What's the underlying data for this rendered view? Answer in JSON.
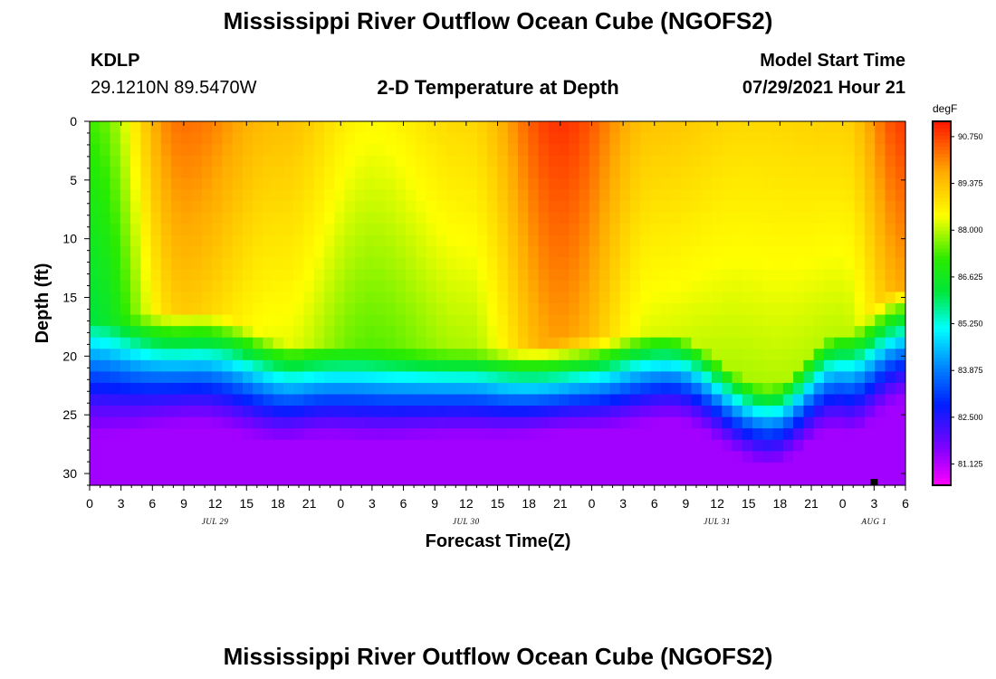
{
  "page": {
    "title_top": "Mississippi River Outflow Ocean Cube (NGOFS2)",
    "title_bottom": "Mississippi River Outflow Ocean Cube (NGOFS2)",
    "station_id": "KDLP",
    "station_coords": "29.1210N  89.5470W",
    "model_start_label": "Model Start Time",
    "model_start_value": "07/29/2021 Hour 21"
  },
  "chart_data": {
    "type": "heatmap",
    "title": "2-D Temperature at Depth",
    "xlabel": "Forecast Time(Z)",
    "ylabel": "Depth (ft)",
    "units": "degF",
    "x_ticks": [
      "0",
      "3",
      "6",
      "9",
      "12",
      "15",
      "18",
      "21",
      "0",
      "3",
      "6",
      "9",
      "12",
      "15",
      "18",
      "21",
      "0",
      "3",
      "6",
      "9",
      "12",
      "15",
      "18",
      "21",
      "0",
      "3",
      "6"
    ],
    "x_range_hours": [
      0,
      78
    ],
    "date_labels": [
      {
        "label": "JUL 29",
        "hour": 12
      },
      {
        "label": "JUL 30",
        "hour": 36
      },
      {
        "label": "JUL 31",
        "hour": 60
      },
      {
        "label": "AUG 1",
        "hour": 75
      }
    ],
    "y_ticks": [
      0,
      5,
      10,
      15,
      20,
      25,
      30
    ],
    "y_range_ft": [
      0,
      31
    ],
    "colorbar": {
      "min": 80.5,
      "max": 91.2,
      "labels": [
        "90.750",
        "89.375",
        "88.000",
        "86.625",
        "85.250",
        "83.875",
        "82.500",
        "81.125"
      ],
      "label_values": [
        90.75,
        89.375,
        88.0,
        86.625,
        85.25,
        83.875,
        82.5,
        81.125
      ]
    },
    "surface_temp_series": [
      {
        "hour": 0,
        "temp": 87.3
      },
      {
        "hour": 9,
        "temp": 90.3
      },
      {
        "hour": 18,
        "temp": 89.4
      },
      {
        "hour": 27,
        "temp": 88.5
      },
      {
        "hour": 36,
        "temp": 89.0
      },
      {
        "hour": 45,
        "temp": 90.9
      },
      {
        "hour": 54,
        "temp": 89.3
      },
      {
        "hour": 63,
        "temp": 89.0
      },
      {
        "hour": 72,
        "temp": 89.1
      },
      {
        "hour": 78,
        "temp": 90.8
      }
    ],
    "mixed_layer_depth_ft": [
      {
        "hour": 0,
        "depth": 17.0
      },
      {
        "hour": 10,
        "depth": 16.0
      },
      {
        "hour": 20,
        "depth": 19.0
      },
      {
        "hour": 30,
        "depth": 19.5
      },
      {
        "hour": 38,
        "depth": 19.5
      },
      {
        "hour": 48,
        "depth": 18.5
      },
      {
        "hour": 55,
        "depth": 18.0
      },
      {
        "hour": 65,
        "depth": 22.5
      },
      {
        "hour": 72,
        "depth": 18.0
      },
      {
        "hour": 78,
        "depth": 14.0
      }
    ],
    "thermocline_thickness_ft": [
      {
        "hour": 0,
        "thickness": 10.0
      },
      {
        "hour": 10,
        "thickness": 10.0
      },
      {
        "hour": 24,
        "thickness": 8.0
      },
      {
        "hour": 36,
        "thickness": 7.5
      },
      {
        "hour": 48,
        "thickness": 8.0
      },
      {
        "hour": 65,
        "thickness": 7.0
      },
      {
        "hour": 78,
        "thickness": 10.0
      }
    ],
    "bottom_temp_f": 81.3,
    "marker_hour": 75
  }
}
